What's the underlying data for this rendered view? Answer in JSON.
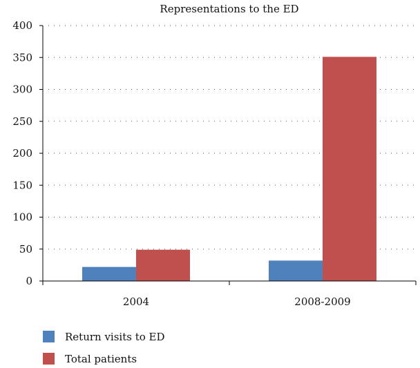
{
  "chart_data": {
    "type": "bar",
    "title": "Representations to the ED",
    "categories": [
      "2004",
      "2008-2009"
    ],
    "series": [
      {
        "name": "Return visits to ED",
        "values": [
          22,
          32
        ],
        "color": "#4f81bd"
      },
      {
        "name": "Total patients",
        "values": [
          49,
          351
        ],
        "color": "#c0504d"
      }
    ],
    "ylim": [
      0,
      400
    ],
    "yticks": [
      0,
      50,
      100,
      150,
      200,
      250,
      300,
      350,
      400
    ],
    "grid": true,
    "legend_position": "bottom-left",
    "xlabel": "",
    "ylabel": ""
  }
}
